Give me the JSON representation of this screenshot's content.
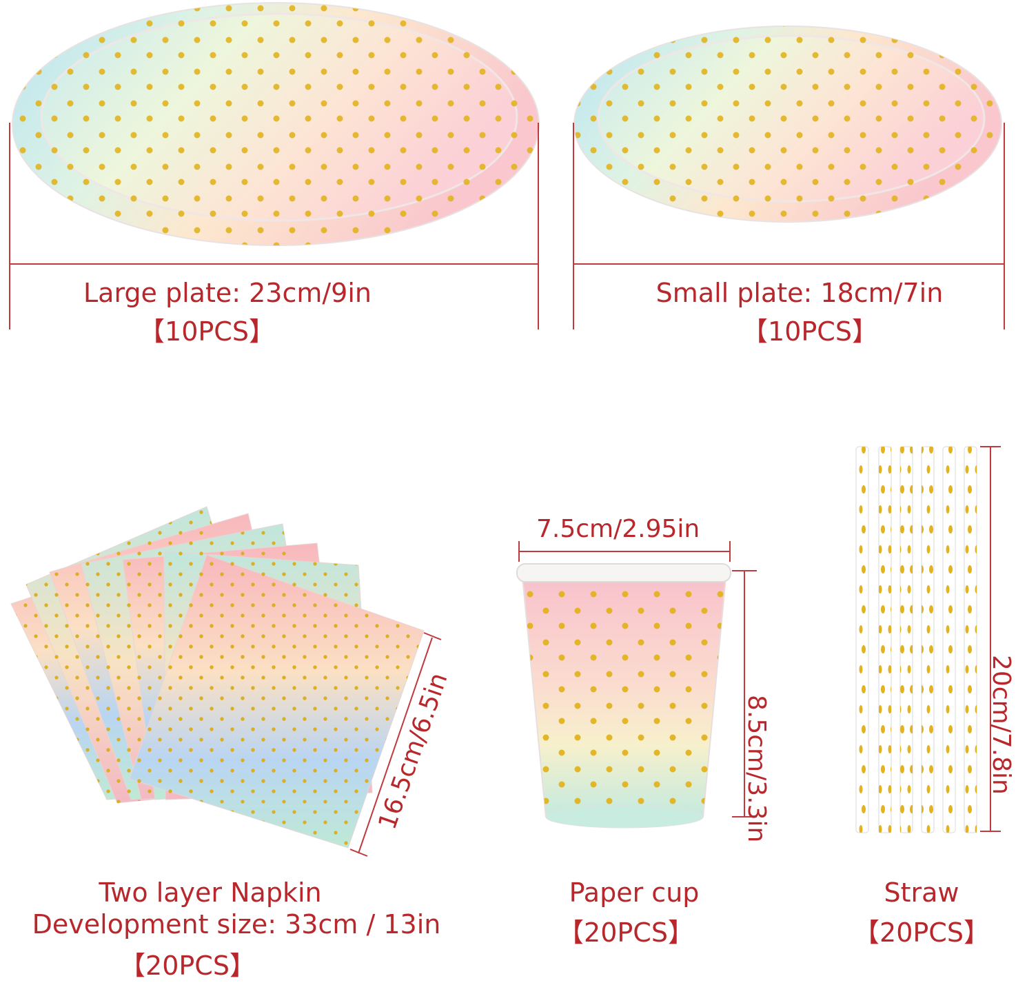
{
  "colors": {
    "accent": "#b8272b",
    "dimension_line": "#c0393d",
    "gold": "#e0b020",
    "pink": "#f9c2c8",
    "blue": "#b8e0f0",
    "yellow": "#fbe9b0",
    "mint": "#c3ebd8"
  },
  "large_plate": {
    "size": "Large plate: 23cm/9in",
    "count": "【10PCS】"
  },
  "small_plate": {
    "size": "Small plate: 18cm/7in",
    "count": "【10PCS】"
  },
  "napkin": {
    "name": "Two layer Napkin",
    "development": "Development size: 33cm / 13in",
    "count": "【20PCS】",
    "dimension": "16.5cm/6.5in"
  },
  "cup": {
    "name": "Paper cup",
    "count": "【20PCS】",
    "width": "7.5cm/2.95in",
    "height": "8.5cm/3.3in"
  },
  "straw": {
    "name": "Straw",
    "count": "【20PCS】",
    "length": "20cm/7.8in"
  }
}
